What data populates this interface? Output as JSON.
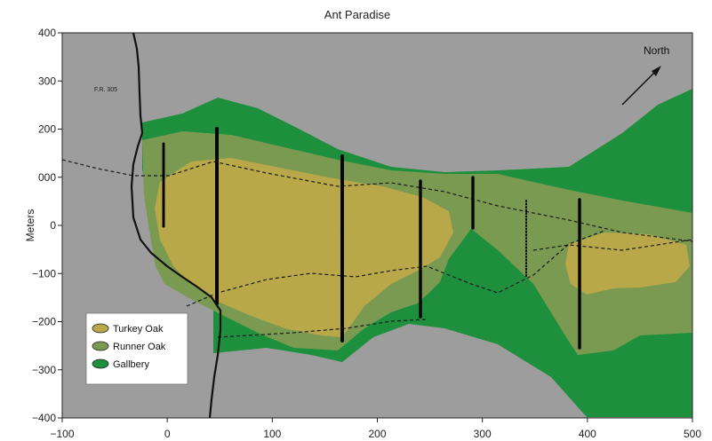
{
  "title": "Ant Paradise",
  "ylabel": "Meters",
  "road_label": "F.R. 305",
  "north_label": "North",
  "x_ticks": [
    "−100",
    "0",
    "100",
    "200",
    "300",
    "400",
    "500"
  ],
  "y_ticks": [
    "400",
    "300",
    "200",
    "000",
    "0",
    "−100",
    "−200",
    "−300",
    "−400"
  ],
  "legend": [
    {
      "label": "Turkey Oak",
      "color": "#b8a84a"
    },
    {
      "label": "Runner Oak",
      "color": "#7a9a52"
    },
    {
      "label": "Gallbery",
      "color": "#1e8f3c"
    }
  ],
  "colors": {
    "background": "#9d9d9d",
    "turkey_oak": "#b8a84a",
    "runner_oak": "#7a9a52",
    "gallbery": "#1e8f3c",
    "road": "#111111"
  },
  "axes": {
    "xlim": [
      -100,
      500
    ],
    "ylim": [
      -400,
      400
    ]
  }
}
